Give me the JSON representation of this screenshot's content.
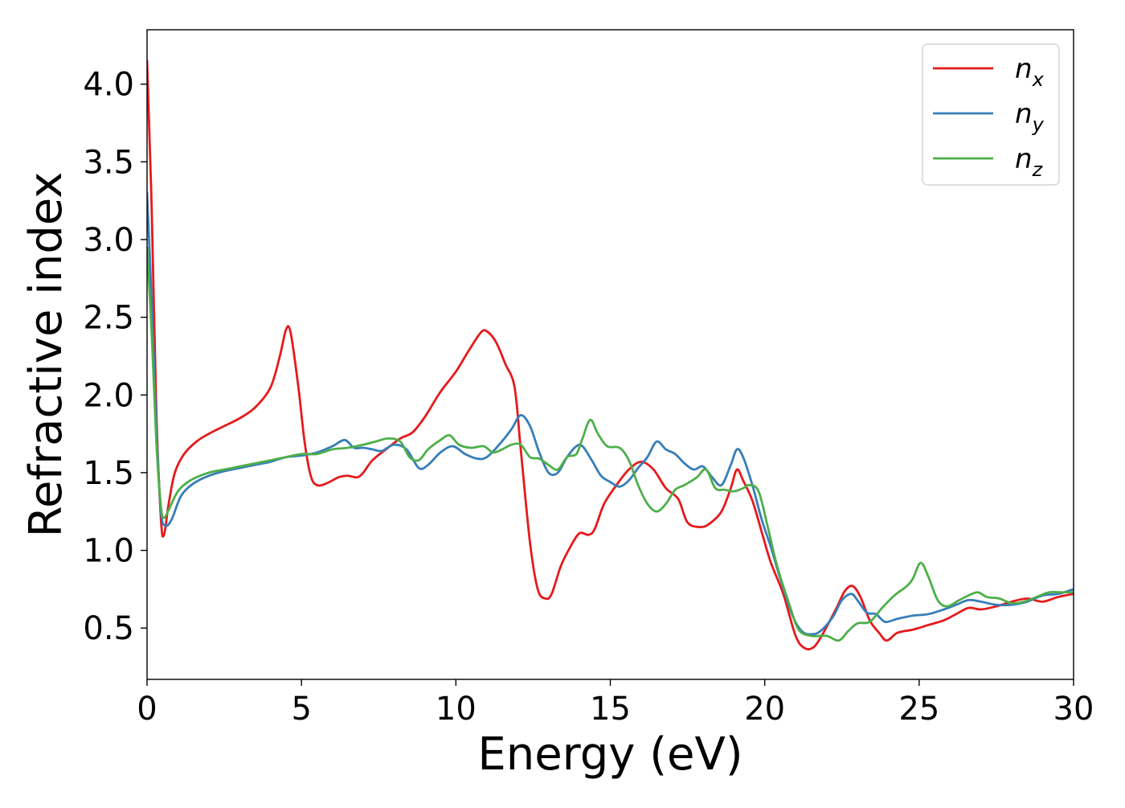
{
  "chart_data": {
    "type": "line",
    "xlabel": "Energy (eV)",
    "ylabel": "Refractive index",
    "xlim": [
      0,
      30
    ],
    "ylim": [
      0.17,
      4.35
    ],
    "xticks": [
      0,
      5,
      10,
      15,
      20,
      25,
      30
    ],
    "yticks": [
      0.5,
      1.0,
      1.5,
      2.0,
      2.5,
      3.0,
      3.5,
      4.0
    ],
    "xtick_labels": [
      "0",
      "5",
      "10",
      "15",
      "20",
      "25",
      "30"
    ],
    "ytick_labels": [
      "0.5",
      "1.0",
      "1.5",
      "2.0",
      "2.5",
      "3.0",
      "3.5",
      "4.0"
    ],
    "grid": false,
    "legend_position": "top-right",
    "series": [
      {
        "name": "n_x",
        "label_main": "n",
        "label_sub": "x",
        "color": "#e41a1c",
        "points": [
          [
            0,
            4.15
          ],
          [
            0.15,
            3.2
          ],
          [
            0.3,
            1.9
          ],
          [
            0.45,
            1.2
          ],
          [
            0.55,
            1.1
          ],
          [
            0.7,
            1.3
          ],
          [
            0.9,
            1.5
          ],
          [
            1.2,
            1.62
          ],
          [
            1.6,
            1.7
          ],
          [
            2.0,
            1.75
          ],
          [
            2.5,
            1.8
          ],
          [
            3.0,
            1.85
          ],
          [
            3.5,
            1.92
          ],
          [
            4.0,
            2.05
          ],
          [
            4.3,
            2.25
          ],
          [
            4.5,
            2.42
          ],
          [
            4.65,
            2.4
          ],
          [
            4.9,
            2.05
          ],
          [
            5.1,
            1.7
          ],
          [
            5.3,
            1.48
          ],
          [
            5.5,
            1.42
          ],
          [
            5.8,
            1.43
          ],
          [
            6.2,
            1.47
          ],
          [
            6.5,
            1.48
          ],
          [
            6.8,
            1.47
          ],
          [
            7.0,
            1.5
          ],
          [
            7.3,
            1.58
          ],
          [
            7.8,
            1.66
          ],
          [
            8.2,
            1.72
          ],
          [
            8.6,
            1.76
          ],
          [
            9.0,
            1.86
          ],
          [
            9.5,
            2.02
          ],
          [
            10.0,
            2.15
          ],
          [
            10.4,
            2.28
          ],
          [
            10.8,
            2.4
          ],
          [
            11.0,
            2.41
          ],
          [
            11.3,
            2.34
          ],
          [
            11.6,
            2.2
          ],
          [
            11.9,
            2.05
          ],
          [
            12.1,
            1.65
          ],
          [
            12.4,
            1.05
          ],
          [
            12.65,
            0.75
          ],
          [
            12.9,
            0.69
          ],
          [
            13.1,
            0.72
          ],
          [
            13.4,
            0.9
          ],
          [
            13.7,
            1.02
          ],
          [
            14.0,
            1.11
          ],
          [
            14.3,
            1.1
          ],
          [
            14.5,
            1.14
          ],
          [
            14.8,
            1.3
          ],
          [
            15.2,
            1.42
          ],
          [
            15.6,
            1.52
          ],
          [
            16.0,
            1.57
          ],
          [
            16.4,
            1.52
          ],
          [
            16.8,
            1.4
          ],
          [
            17.2,
            1.33
          ],
          [
            17.5,
            1.18
          ],
          [
            17.9,
            1.15
          ],
          [
            18.2,
            1.17
          ],
          [
            18.6,
            1.25
          ],
          [
            18.9,
            1.4
          ],
          [
            19.1,
            1.52
          ],
          [
            19.3,
            1.45
          ],
          [
            19.6,
            1.32
          ],
          [
            19.9,
            1.12
          ],
          [
            20.2,
            0.92
          ],
          [
            20.6,
            0.72
          ],
          [
            21.0,
            0.45
          ],
          [
            21.3,
            0.37
          ],
          [
            21.6,
            0.38
          ],
          [
            21.9,
            0.47
          ],
          [
            22.3,
            0.62
          ],
          [
            22.6,
            0.74
          ],
          [
            22.85,
            0.77
          ],
          [
            23.1,
            0.7
          ],
          [
            23.4,
            0.55
          ],
          [
            23.7,
            0.47
          ],
          [
            23.95,
            0.42
          ],
          [
            24.3,
            0.47
          ],
          [
            24.8,
            0.49
          ],
          [
            25.3,
            0.52
          ],
          [
            25.8,
            0.55
          ],
          [
            26.2,
            0.59
          ],
          [
            26.6,
            0.63
          ],
          [
            27.0,
            0.62
          ],
          [
            27.5,
            0.64
          ],
          [
            28.0,
            0.67
          ],
          [
            28.5,
            0.69
          ],
          [
            29.0,
            0.67
          ],
          [
            29.5,
            0.7
          ],
          [
            30.0,
            0.72
          ]
        ]
      },
      {
        "name": "n_y",
        "label_main": "n",
        "label_sub": "y",
        "color": "#377eb8",
        "points": [
          [
            0,
            3.3
          ],
          [
            0.15,
            2.6
          ],
          [
            0.3,
            1.8
          ],
          [
            0.45,
            1.25
          ],
          [
            0.6,
            1.16
          ],
          [
            0.8,
            1.2
          ],
          [
            1.1,
            1.35
          ],
          [
            1.5,
            1.43
          ],
          [
            2.0,
            1.48
          ],
          [
            2.5,
            1.51
          ],
          [
            3.0,
            1.53
          ],
          [
            3.5,
            1.55
          ],
          [
            4.0,
            1.57
          ],
          [
            4.5,
            1.6
          ],
          [
            5.0,
            1.61
          ],
          [
            5.5,
            1.63
          ],
          [
            6.0,
            1.67
          ],
          [
            6.4,
            1.71
          ],
          [
            6.7,
            1.66
          ],
          [
            7.0,
            1.66
          ],
          [
            7.3,
            1.65
          ],
          [
            7.6,
            1.64
          ],
          [
            8.0,
            1.68
          ],
          [
            8.4,
            1.65
          ],
          [
            8.8,
            1.53
          ],
          [
            9.1,
            1.55
          ],
          [
            9.5,
            1.63
          ],
          [
            9.9,
            1.67
          ],
          [
            10.3,
            1.62
          ],
          [
            10.7,
            1.59
          ],
          [
            11.0,
            1.6
          ],
          [
            11.4,
            1.68
          ],
          [
            11.8,
            1.78
          ],
          [
            12.1,
            1.87
          ],
          [
            12.4,
            1.8
          ],
          [
            12.7,
            1.63
          ],
          [
            13.0,
            1.5
          ],
          [
            13.3,
            1.5
          ],
          [
            13.6,
            1.6
          ],
          [
            13.9,
            1.67
          ],
          [
            14.1,
            1.67
          ],
          [
            14.4,
            1.58
          ],
          [
            14.7,
            1.48
          ],
          [
            15.0,
            1.44
          ],
          [
            15.3,
            1.41
          ],
          [
            15.6,
            1.45
          ],
          [
            15.9,
            1.53
          ],
          [
            16.2,
            1.6
          ],
          [
            16.5,
            1.7
          ],
          [
            16.8,
            1.65
          ],
          [
            17.1,
            1.62
          ],
          [
            17.4,
            1.56
          ],
          [
            17.7,
            1.52
          ],
          [
            18.0,
            1.54
          ],
          [
            18.3,
            1.47
          ],
          [
            18.6,
            1.42
          ],
          [
            18.9,
            1.55
          ],
          [
            19.1,
            1.65
          ],
          [
            19.3,
            1.6
          ],
          [
            19.6,
            1.42
          ],
          [
            19.9,
            1.2
          ],
          [
            20.2,
            1.02
          ],
          [
            20.5,
            0.82
          ],
          [
            20.9,
            0.58
          ],
          [
            21.2,
            0.48
          ],
          [
            21.5,
            0.46
          ],
          [
            21.8,
            0.48
          ],
          [
            22.2,
            0.57
          ],
          [
            22.5,
            0.68
          ],
          [
            22.8,
            0.72
          ],
          [
            23.0,
            0.68
          ],
          [
            23.3,
            0.6
          ],
          [
            23.6,
            0.59
          ],
          [
            23.9,
            0.54
          ],
          [
            24.3,
            0.56
          ],
          [
            24.8,
            0.58
          ],
          [
            25.3,
            0.59
          ],
          [
            25.8,
            0.62
          ],
          [
            26.2,
            0.65
          ],
          [
            26.6,
            0.68
          ],
          [
            27.0,
            0.67
          ],
          [
            27.5,
            0.65
          ],
          [
            28.0,
            0.65
          ],
          [
            28.5,
            0.67
          ],
          [
            29.0,
            0.71
          ],
          [
            29.5,
            0.72
          ],
          [
            30.0,
            0.75
          ]
        ]
      },
      {
        "name": "n_z",
        "label_main": "n",
        "label_sub": "z",
        "color": "#4daf4a",
        "points": [
          [
            0,
            2.95
          ],
          [
            0.15,
            2.4
          ],
          [
            0.3,
            1.7
          ],
          [
            0.45,
            1.28
          ],
          [
            0.55,
            1.21
          ],
          [
            0.7,
            1.26
          ],
          [
            1.0,
            1.38
          ],
          [
            1.4,
            1.45
          ],
          [
            2.0,
            1.5
          ],
          [
            2.5,
            1.52
          ],
          [
            3.0,
            1.54
          ],
          [
            3.5,
            1.56
          ],
          [
            4.0,
            1.58
          ],
          [
            4.5,
            1.6
          ],
          [
            5.0,
            1.62
          ],
          [
            5.5,
            1.62
          ],
          [
            6.0,
            1.65
          ],
          [
            6.5,
            1.66
          ],
          [
            7.0,
            1.68
          ],
          [
            7.4,
            1.7
          ],
          [
            7.8,
            1.72
          ],
          [
            8.2,
            1.7
          ],
          [
            8.5,
            1.6
          ],
          [
            8.8,
            1.58
          ],
          [
            9.1,
            1.65
          ],
          [
            9.5,
            1.71
          ],
          [
            9.8,
            1.74
          ],
          [
            10.1,
            1.68
          ],
          [
            10.5,
            1.66
          ],
          [
            10.9,
            1.67
          ],
          [
            11.2,
            1.63
          ],
          [
            11.5,
            1.65
          ],
          [
            11.8,
            1.68
          ],
          [
            12.1,
            1.68
          ],
          [
            12.4,
            1.6
          ],
          [
            12.7,
            1.59
          ],
          [
            13.0,
            1.55
          ],
          [
            13.3,
            1.52
          ],
          [
            13.6,
            1.6
          ],
          [
            13.9,
            1.62
          ],
          [
            14.1,
            1.72
          ],
          [
            14.35,
            1.84
          ],
          [
            14.6,
            1.75
          ],
          [
            14.9,
            1.67
          ],
          [
            15.3,
            1.66
          ],
          [
            15.6,
            1.58
          ],
          [
            15.9,
            1.42
          ],
          [
            16.2,
            1.3
          ],
          [
            16.5,
            1.25
          ],
          [
            16.8,
            1.3
          ],
          [
            17.1,
            1.39
          ],
          [
            17.4,
            1.42
          ],
          [
            17.8,
            1.47
          ],
          [
            18.1,
            1.52
          ],
          [
            18.4,
            1.4
          ],
          [
            18.7,
            1.39
          ],
          [
            19.0,
            1.38
          ],
          [
            19.3,
            1.4
          ],
          [
            19.5,
            1.42
          ],
          [
            19.8,
            1.38
          ],
          [
            20.1,
            1.15
          ],
          [
            20.4,
            0.9
          ],
          [
            20.8,
            0.65
          ],
          [
            21.1,
            0.49
          ],
          [
            21.5,
            0.45
          ],
          [
            22.0,
            0.45
          ],
          [
            22.4,
            0.42
          ],
          [
            22.7,
            0.48
          ],
          [
            23.0,
            0.53
          ],
          [
            23.4,
            0.54
          ],
          [
            23.8,
            0.63
          ],
          [
            24.2,
            0.71
          ],
          [
            24.6,
            0.77
          ],
          [
            24.8,
            0.82
          ],
          [
            25.05,
            0.92
          ],
          [
            25.3,
            0.83
          ],
          [
            25.6,
            0.68
          ],
          [
            25.9,
            0.64
          ],
          [
            26.3,
            0.68
          ],
          [
            26.6,
            0.71
          ],
          [
            26.9,
            0.73
          ],
          [
            27.2,
            0.7
          ],
          [
            27.6,
            0.69
          ],
          [
            28.0,
            0.66
          ],
          [
            28.4,
            0.67
          ],
          [
            28.8,
            0.7
          ],
          [
            29.2,
            0.73
          ],
          [
            29.6,
            0.73
          ],
          [
            30.0,
            0.73
          ]
        ]
      }
    ]
  }
}
